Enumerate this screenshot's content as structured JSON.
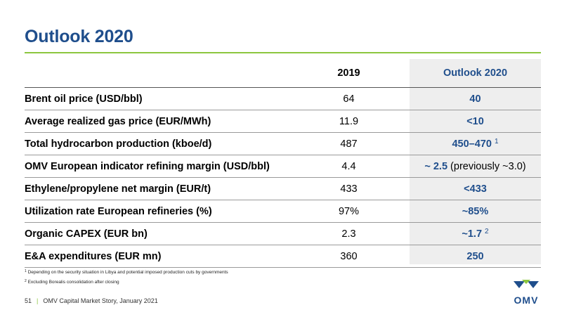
{
  "title": "Outlook 2020",
  "table": {
    "headers": [
      "",
      "2019",
      "Outlook 2020"
    ],
    "rows": [
      {
        "label": "Brent oil price (USD/bbl)",
        "v2019": "64",
        "outlook": "40",
        "note": "",
        "suffix": ""
      },
      {
        "label": "Average realized gas price (EUR/MWh)",
        "v2019": "11.9",
        "outlook": "<10",
        "note": "",
        "suffix": ""
      },
      {
        "label": "Total hydrocarbon production (kboe/d)",
        "v2019": "487",
        "outlook": "450–470",
        "note": "1",
        "suffix": ""
      },
      {
        "label": "OMV European indicator refining margin (USD/bbl)",
        "v2019": "4.4",
        "outlook": "~ 2.5",
        "note": "",
        "suffix": "(previously ~3.0)"
      },
      {
        "label": "Ethylene/propylene net margin (EUR/t)",
        "v2019": "433",
        "outlook": "<433",
        "note": "",
        "suffix": ""
      },
      {
        "label": "Utilization rate European refineries (%)",
        "v2019": "97%",
        "outlook": "~85%",
        "note": "",
        "suffix": ""
      },
      {
        "label": "Organic CAPEX (EUR bn)",
        "v2019": "2.3",
        "outlook": "~1.7",
        "note": "2",
        "suffix": ""
      },
      {
        "label": "E&A expenditures (EUR mn)",
        "v2019": "360",
        "outlook": "250",
        "note": "",
        "suffix": ""
      }
    ]
  },
  "footnotes": [
    {
      "num": "1",
      "text": "Depending on the security situation in Libya and potential imposed production cuts by governments"
    },
    {
      "num": "2",
      "text": "Excluding Borealis consolidation after closing"
    }
  ],
  "footer": {
    "page": "51",
    "text": "OMV Capital Market Story, January 2021"
  },
  "logo_text": "OMV",
  "colors": {
    "brand_blue": "#1f4e8c",
    "accent_green": "#8cc63f"
  }
}
